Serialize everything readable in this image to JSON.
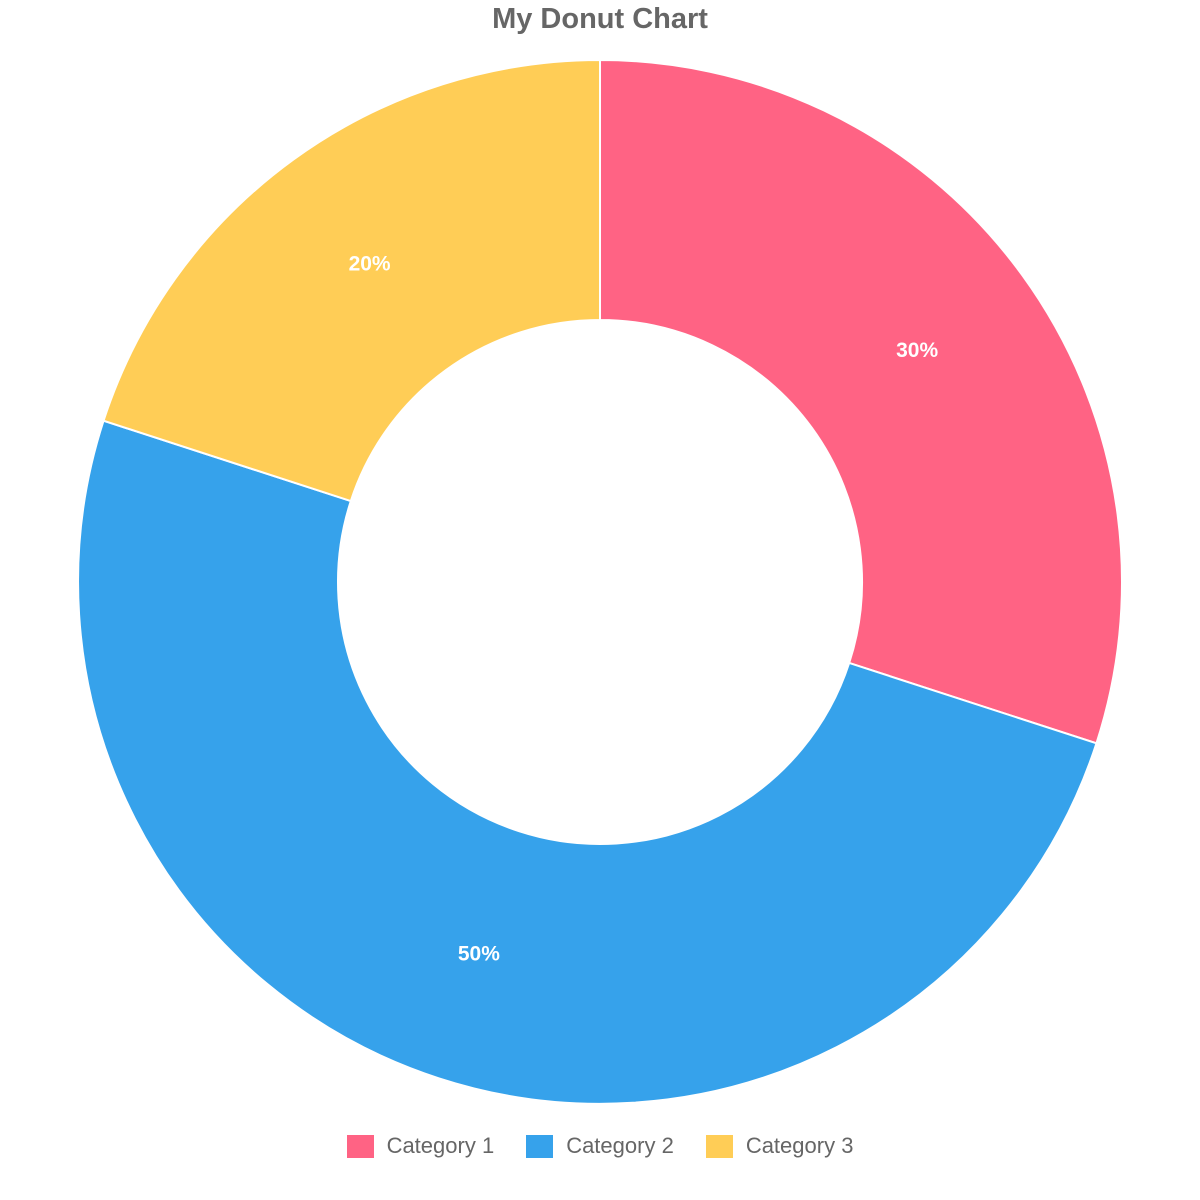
{
  "chart_data": {
    "type": "pie",
    "variant": "donut",
    "title": "My Donut Chart",
    "categories": [
      "Category 1",
      "Category 2",
      "Category 3"
    ],
    "values": [
      30,
      50,
      20
    ],
    "data_labels": [
      "30%",
      "50%",
      "20%"
    ],
    "colors": [
      "#ff6384",
      "#36a2eb",
      "#ffcd56"
    ],
    "legend_position": "bottom"
  }
}
